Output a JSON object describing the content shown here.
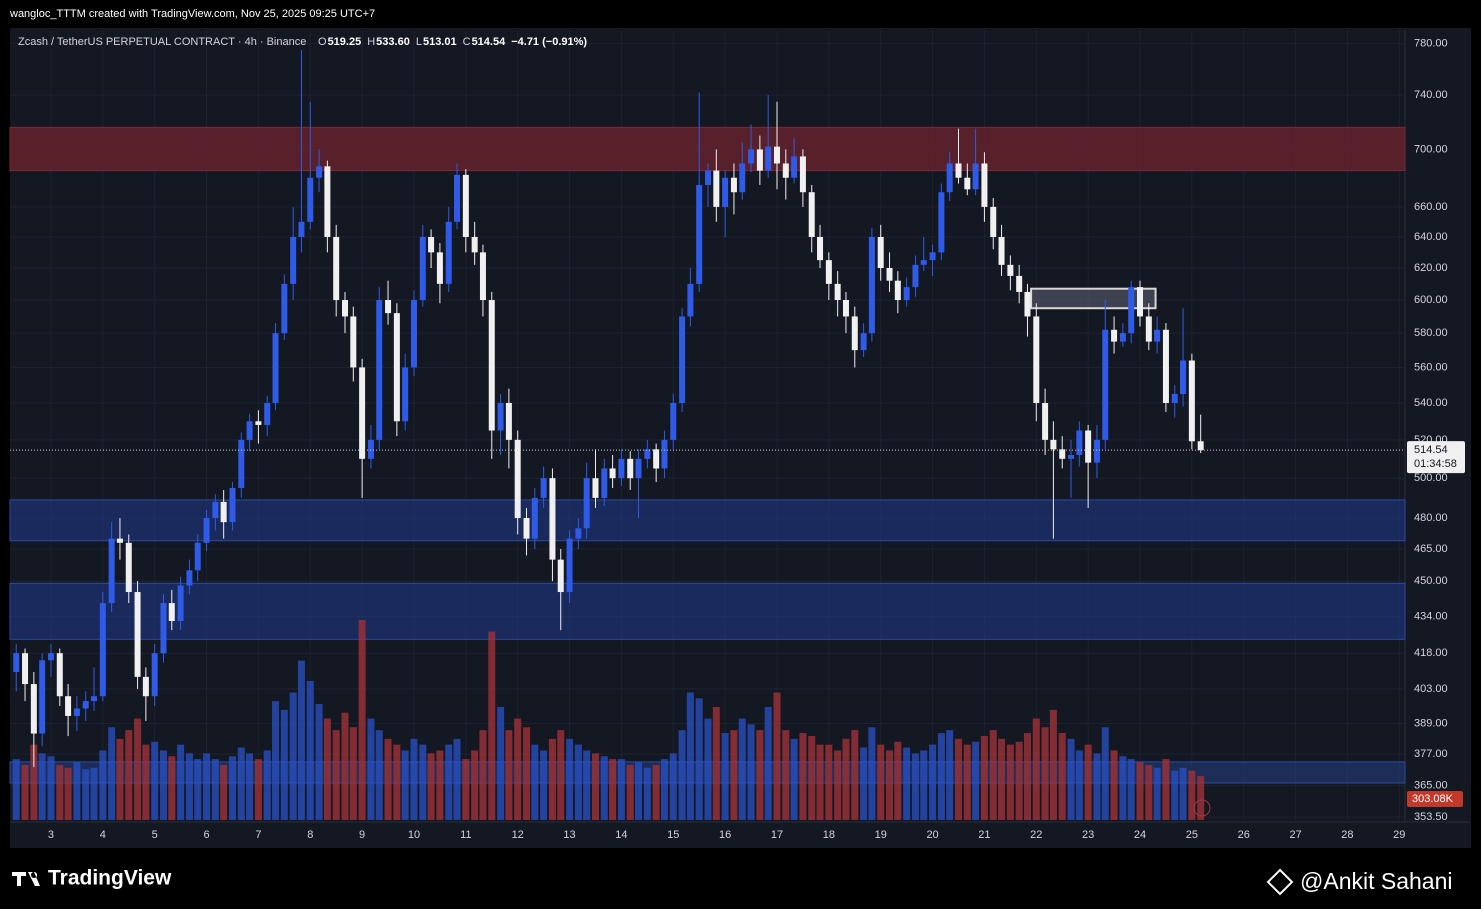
{
  "header": {
    "caption": "wangloc_TTTM created with TradingView.com, Nov 25, 2025 09:25 UTC+7",
    "brand": "TradingView",
    "watermark": "@Ankit Sahani"
  },
  "chart_data": {
    "type": "candlestick",
    "symbol": "Zcash / TetherUS PERPETUAL CONTRACT · 4h · Binance",
    "legend": [
      {
        "key": "O",
        "text": "519.25"
      },
      {
        "key": "H",
        "text": "533.60"
      },
      {
        "key": "L",
        "text": "513.01"
      },
      {
        "key": "C",
        "text": "514.54"
      }
    ],
    "change_text": "−4.71 (−0.91%)",
    "log_scale": true,
    "grid": true,
    "up_color": "#2f5be8",
    "down_color": "#f0f0f0",
    "volume_up_color": "rgba(41,82,200,0.75)",
    "volume_down_color": "rgba(160,50,55,0.8)",
    "ylim": [
      352.4,
      791
    ],
    "xlim": [
      2.21,
      29.11
    ],
    "yticks": [
      {
        "value": 780,
        "label": "780.00"
      },
      {
        "value": 740,
        "label": "740.00"
      },
      {
        "value": 700,
        "label": "700.00"
      },
      {
        "value": 660,
        "label": "660.00"
      },
      {
        "value": 640,
        "label": "640.00"
      },
      {
        "value": 620,
        "label": "620.00"
      },
      {
        "value": 600,
        "label": "600.00"
      },
      {
        "value": 580,
        "label": "580.00"
      },
      {
        "value": 560,
        "label": "560.00"
      },
      {
        "value": 540,
        "label": "540.00"
      },
      {
        "value": 520,
        "label": "520.00"
      },
      {
        "value": 500,
        "label": "500.00"
      },
      {
        "value": 480,
        "label": "480.00"
      },
      {
        "value": 465,
        "label": "465.00"
      },
      {
        "value": 450,
        "label": "450.00"
      },
      {
        "value": 434,
        "label": "434.00"
      },
      {
        "value": 418,
        "label": "418.00"
      },
      {
        "value": 403,
        "label": "403.00"
      },
      {
        "value": 389,
        "label": "389.00"
      },
      {
        "value": 377,
        "label": "377.00"
      },
      {
        "value": 365,
        "label": "365.00"
      },
      {
        "value": 353.5,
        "label": "353.50"
      }
    ],
    "xticks": [
      3,
      4,
      5,
      6,
      7,
      8,
      9,
      10,
      11,
      12,
      13,
      14,
      15,
      16,
      17,
      18,
      19,
      20,
      21,
      22,
      23,
      24,
      25,
      26,
      27,
      28,
      29
    ],
    "zones": [
      {
        "from": 685,
        "to": 716,
        "color": "rgba(110,35,45,0.75)",
        "border": "#7a2a35"
      },
      {
        "from": 469,
        "to": 489,
        "color": "rgba(30,55,130,0.6)",
        "border": "#2c4aa0"
      },
      {
        "from": 424,
        "to": 449,
        "color": "rgba(30,55,130,0.6)",
        "border": "#2c4aa0"
      },
      {
        "from": 366,
        "to": 374,
        "color": "rgba(40,70,150,0.45)",
        "border": "#2c4aa0"
      },
      {
        "from": 595,
        "to": 607,
        "x": [
          21.9,
          24.3
        ],
        "color": "rgba(90,95,110,0.6)",
        "border": "#d8d8d8"
      }
    ],
    "last_price": 514.54,
    "countdown": "01:34:58",
    "last_volume_label": "303.08K",
    "x": [
      2.33,
      2.5,
      2.67,
      2.83,
      3,
      3.17,
      3.33,
      3.5,
      3.67,
      3.83,
      4,
      4.17,
      4.33,
      4.5,
      4.67,
      4.83,
      5,
      5.17,
      5.33,
      5.5,
      5.67,
      5.83,
      6,
      6.17,
      6.33,
      6.5,
      6.67,
      6.83,
      7,
      7.17,
      7.33,
      7.5,
      7.67,
      7.83,
      8,
      8.17,
      8.33,
      8.5,
      8.67,
      8.83,
      9,
      9.17,
      9.33,
      9.5,
      9.67,
      9.83,
      10,
      10.17,
      10.33,
      10.5,
      10.67,
      10.83,
      11,
      11.17,
      11.33,
      11.5,
      11.67,
      11.83,
      12,
      12.17,
      12.33,
      12.5,
      12.67,
      12.83,
      13,
      13.17,
      13.33,
      13.5,
      13.67,
      13.83,
      14,
      14.17,
      14.33,
      14.5,
      14.67,
      14.83,
      15,
      15.17,
      15.33,
      15.5,
      15.67,
      15.83,
      16,
      16.17,
      16.33,
      16.5,
      16.67,
      16.83,
      17,
      17.17,
      17.33,
      17.5,
      17.67,
      17.83,
      18,
      18.17,
      18.33,
      18.5,
      18.67,
      18.83,
      19,
      19.17,
      19.33,
      19.5,
      19.67,
      19.83,
      20,
      20.17,
      20.33,
      20.5,
      20.67,
      20.83,
      21,
      21.17,
      21.33,
      21.5,
      21.67,
      21.83,
      22,
      22.17,
      22.33,
      22.5,
      22.67,
      22.83,
      23,
      23.17,
      23.33,
      23.5,
      23.67,
      23.83,
      24,
      24.17,
      24.33,
      24.5,
      24.67,
      24.83,
      25,
      25.17
    ],
    "candles": [
      [
        410,
        422,
        402,
        418
      ],
      [
        418,
        420,
        398,
        405
      ],
      [
        405,
        410,
        372,
        385
      ],
      [
        385,
        418,
        380,
        415
      ],
      [
        415,
        422,
        408,
        418
      ],
      [
        418,
        420,
        396,
        400
      ],
      [
        400,
        405,
        384,
        392
      ],
      [
        392,
        400,
        386,
        395
      ],
      [
        395,
        402,
        390,
        398
      ],
      [
        398,
        412,
        394,
        400
      ],
      [
        400,
        445,
        398,
        440
      ],
      [
        440,
        478,
        436,
        470
      ],
      [
        470,
        480,
        460,
        468
      ],
      [
        468,
        472,
        440,
        445
      ],
      [
        445,
        450,
        403,
        408
      ],
      [
        408,
        412,
        390,
        400
      ],
      [
        400,
        422,
        396,
        418
      ],
      [
        418,
        444,
        414,
        440
      ],
      [
        440,
        446,
        428,
        432
      ],
      [
        432,
        452,
        428,
        448
      ],
      [
        448,
        460,
        444,
        455
      ],
      [
        455,
        472,
        450,
        468
      ],
      [
        468,
        484,
        464,
        480
      ],
      [
        480,
        492,
        474,
        488
      ],
      [
        488,
        494,
        470,
        478
      ],
      [
        478,
        498,
        474,
        495
      ],
      [
        495,
        524,
        490,
        520
      ],
      [
        520,
        534,
        514,
        530
      ],
      [
        530,
        536,
        518,
        528
      ],
      [
        528,
        544,
        522,
        540
      ],
      [
        540,
        586,
        536,
        580
      ],
      [
        580,
        616,
        576,
        610
      ],
      [
        610,
        660,
        600,
        640
      ],
      [
        640,
        775,
        630,
        650
      ],
      [
        650,
        735,
        645,
        680
      ],
      [
        680,
        700,
        670,
        688
      ],
      [
        688,
        692,
        630,
        640
      ],
      [
        640,
        648,
        590,
        600
      ],
      [
        600,
        605,
        580,
        590
      ],
      [
        590,
        596,
        552,
        560
      ],
      [
        560,
        565,
        490,
        510
      ],
      [
        510,
        528,
        505,
        520
      ],
      [
        520,
        608,
        515,
        600
      ],
      [
        600,
        612,
        585,
        592
      ],
      [
        592,
        598,
        522,
        530
      ],
      [
        530,
        568,
        525,
        560
      ],
      [
        560,
        606,
        555,
        600
      ],
      [
        600,
        648,
        596,
        640
      ],
      [
        640,
        645,
        620,
        630
      ],
      [
        630,
        636,
        598,
        610
      ],
      [
        610,
        660,
        605,
        650
      ],
      [
        650,
        690,
        645,
        682
      ],
      [
        682,
        686,
        630,
        640
      ],
      [
        640,
        650,
        622,
        630
      ],
      [
        630,
        635,
        590,
        600
      ],
      [
        600,
        605,
        510,
        525
      ],
      [
        525,
        545,
        512,
        540
      ],
      [
        540,
        548,
        505,
        520
      ],
      [
        520,
        525,
        472,
        480
      ],
      [
        480,
        485,
        462,
        470
      ],
      [
        470,
        495,
        465,
        490
      ],
      [
        490,
        506,
        485,
        500
      ],
      [
        500,
        505,
        450,
        460
      ],
      [
        460,
        465,
        428,
        445
      ],
      [
        445,
        474,
        440,
        470
      ],
      [
        470,
        480,
        465,
        475
      ],
      [
        475,
        508,
        470,
        500
      ],
      [
        500,
        515,
        485,
        490
      ],
      [
        490,
        510,
        486,
        505
      ],
      [
        505,
        512,
        495,
        500
      ],
      [
        500,
        515,
        496,
        510
      ],
      [
        510,
        514,
        494,
        500
      ],
      [
        500,
        515,
        480,
        510
      ],
      [
        510,
        520,
        505,
        515
      ],
      [
        515,
        518,
        498,
        505
      ],
      [
        505,
        525,
        500,
        520
      ],
      [
        520,
        545,
        515,
        540
      ],
      [
        540,
        595,
        535,
        590
      ],
      [
        590,
        620,
        584,
        610
      ],
      [
        610,
        742,
        605,
        675
      ],
      [
        675,
        690,
        660,
        685
      ],
      [
        685,
        700,
        650,
        660
      ],
      [
        660,
        685,
        640,
        680
      ],
      [
        680,
        690,
        655,
        670
      ],
      [
        670,
        705,
        665,
        690
      ],
      [
        690,
        718,
        684,
        700
      ],
      [
        700,
        710,
        675,
        685
      ],
      [
        685,
        740,
        680,
        702
      ],
      [
        702,
        735,
        672,
        690
      ],
      [
        690,
        700,
        665,
        680
      ],
      [
        680,
        708,
        676,
        695
      ],
      [
        695,
        700,
        660,
        670
      ],
      [
        670,
        675,
        630,
        640
      ],
      [
        640,
        648,
        620,
        625
      ],
      [
        625,
        630,
        600,
        610
      ],
      [
        610,
        618,
        590,
        600
      ],
      [
        600,
        605,
        580,
        590
      ],
      [
        590,
        596,
        560,
        570
      ],
      [
        570,
        586,
        566,
        580
      ],
      [
        580,
        646,
        575,
        640
      ],
      [
        640,
        648,
        612,
        620
      ],
      [
        620,
        630,
        605,
        612
      ],
      [
        612,
        618,
        592,
        600
      ],
      [
        600,
        614,
        596,
        608
      ],
      [
        608,
        628,
        602,
        622
      ],
      [
        622,
        640,
        618,
        625
      ],
      [
        625,
        635,
        615,
        630
      ],
      [
        630,
        676,
        625,
        670
      ],
      [
        670,
        698,
        664,
        690
      ],
      [
        690,
        715,
        676,
        680
      ],
      [
        680,
        690,
        668,
        672
      ],
      [
        672,
        715,
        668,
        690
      ],
      [
        690,
        698,
        650,
        660
      ],
      [
        660,
        666,
        632,
        640
      ],
      [
        640,
        648,
        615,
        622
      ],
      [
        622,
        628,
        606,
        615
      ],
      [
        615,
        622,
        598,
        605
      ],
      [
        605,
        610,
        578,
        590
      ],
      [
        590,
        598,
        530,
        540
      ],
      [
        540,
        548,
        512,
        520
      ],
      [
        520,
        530,
        470,
        515
      ],
      [
        515,
        522,
        505,
        510
      ],
      [
        510,
        520,
        490,
        512
      ],
      [
        512,
        530,
        506,
        525
      ],
      [
        525,
        528,
        485,
        508
      ],
      [
        508,
        528,
        500,
        520
      ],
      [
        520,
        600,
        515,
        582
      ],
      [
        582,
        590,
        568,
        575
      ],
      [
        575,
        586,
        572,
        580
      ],
      [
        580,
        612,
        574,
        608
      ],
      [
        608,
        612,
        584,
        590
      ],
      [
        590,
        598,
        570,
        575
      ],
      [
        575,
        590,
        568,
        582
      ],
      [
        582,
        586,
        535,
        540
      ],
      [
        540,
        550,
        532,
        545
      ],
      [
        545,
        595,
        538,
        564
      ],
      [
        564,
        568,
        515,
        519.25
      ],
      [
        519.25,
        533.6,
        513.01,
        514.54
      ]
    ],
    "volumes": [
      420000,
      380000,
      520000,
      460000,
      440000,
      380000,
      360000,
      400000,
      350000,
      360000,
      480000,
      640000,
      560000,
      620000,
      700000,
      520000,
      540000,
      480000,
      440000,
      520000,
      460000,
      420000,
      460000,
      420000,
      380000,
      440000,
      500000,
      460000,
      420000,
      480000,
      820000,
      760000,
      880000,
      1100000,
      960000,
      800000,
      700000,
      620000,
      740000,
      640000,
      1380000,
      700000,
      620000,
      560000,
      520000,
      480000,
      560000,
      520000,
      460000,
      480000,
      520000,
      560000,
      420000,
      480000,
      620000,
      1300000,
      780000,
      620000,
      700000,
      640000,
      520000,
      480000,
      560000,
      620000,
      560000,
      520000,
      480000,
      460000,
      440000,
      420000,
      420000,
      380000,
      400000,
      360000,
      380000,
      420000,
      460000,
      620000,
      880000,
      840000,
      700000,
      780000,
      600000,
      620000,
      700000,
      660000,
      620000,
      780000,
      880000,
      620000,
      560000,
      600000,
      580000,
      520000,
      520000,
      480000,
      560000,
      620000,
      500000,
      640000,
      520000,
      480000,
      540000,
      500000,
      460000,
      480000,
      520000,
      600000,
      620000,
      560000,
      520000,
      540000,
      580000,
      620000,
      560000,
      520000,
      540000,
      600000,
      700000,
      640000,
      760000,
      600000,
      560000,
      480000,
      520000,
      460000,
      640000,
      480000,
      440000,
      420000,
      400000,
      380000,
      360000,
      420000,
      340000,
      360000,
      340000,
      303080
    ]
  }
}
